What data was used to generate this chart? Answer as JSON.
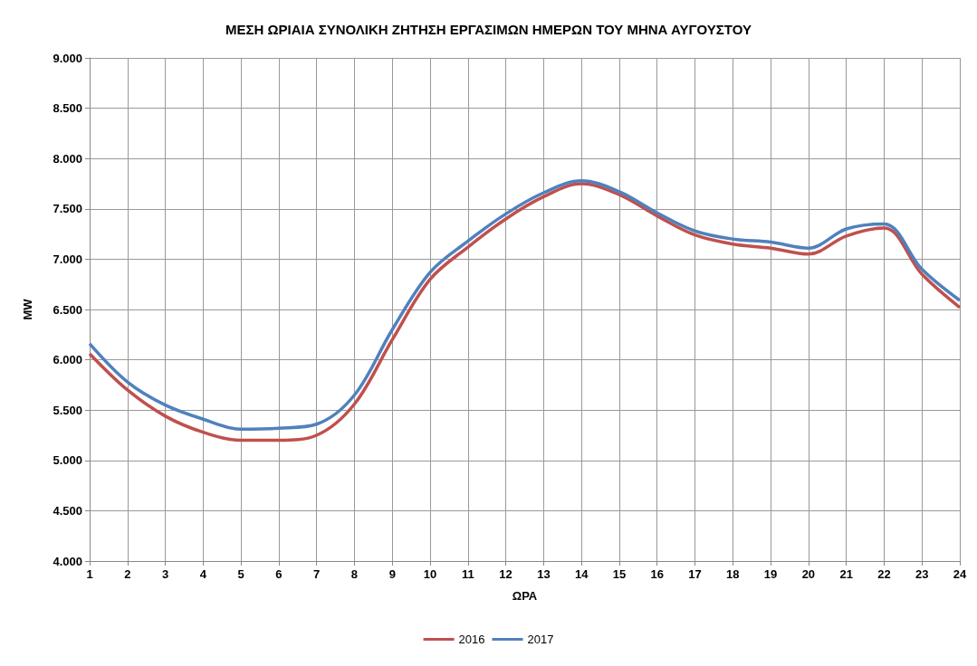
{
  "chart_data": {
    "type": "line",
    "title": "ΜΕΣΗ ΩΡΙΑΙΑ ΣΥΝΟΛΙΚΗ ΖΗΤΗΣΗ ΕΡΓΑΣΙΜΩΝ ΗΜΕΡΩΝ ΤΟΥ ΜΗΝΑ ΑΥΓΟΥΣΤΟΥ",
    "xlabel": "ΩΡΑ",
    "ylabel": "MW",
    "x": [
      1,
      2,
      3,
      4,
      5,
      6,
      7,
      8,
      9,
      10,
      11,
      12,
      13,
      14,
      15,
      16,
      17,
      18,
      19,
      20,
      21,
      22,
      23,
      24
    ],
    "series": [
      {
        "name": "2016",
        "color": "#c0504d",
        "values": [
          6060,
          5700,
          5440,
          5280,
          5200,
          5200,
          5250,
          5560,
          6200,
          6800,
          7120,
          7400,
          7620,
          7750,
          7640,
          7430,
          7240,
          7150,
          7110,
          7050,
          7230,
          7310,
          6850,
          6520
        ]
      },
      {
        "name": "2017",
        "color": "#4f81bd",
        "values": [
          6160,
          5780,
          5550,
          5410,
          5310,
          5320,
          5360,
          5650,
          6300,
          6870,
          7180,
          7450,
          7660,
          7780,
          7670,
          7460,
          7280,
          7200,
          7170,
          7110,
          7300,
          7350,
          6900,
          6590
        ]
      }
    ],
    "xlim": [
      1,
      24
    ],
    "xticks": [
      1,
      2,
      3,
      4,
      5,
      6,
      7,
      8,
      9,
      10,
      11,
      12,
      13,
      14,
      15,
      16,
      17,
      18,
      19,
      20,
      21,
      22,
      23,
      24
    ],
    "ylim": [
      4000,
      9000
    ],
    "yticks": [
      {
        "value": 4000,
        "label": "4.000"
      },
      {
        "value": 4500,
        "label": "4.500"
      },
      {
        "value": 5000,
        "label": "5.000"
      },
      {
        "value": 5500,
        "label": "5.500"
      },
      {
        "value": 6000,
        "label": "6.000"
      },
      {
        "value": 6500,
        "label": "6.500"
      },
      {
        "value": 7000,
        "label": "7.000"
      },
      {
        "value": 7500,
        "label": "7.500"
      },
      {
        "value": 8000,
        "label": "8.000"
      },
      {
        "value": 8500,
        "label": "8.500"
      },
      {
        "value": 9000,
        "label": "9.000"
      }
    ],
    "grid": true,
    "legend": "bottom",
    "marker": "none",
    "line_style": "solid"
  }
}
